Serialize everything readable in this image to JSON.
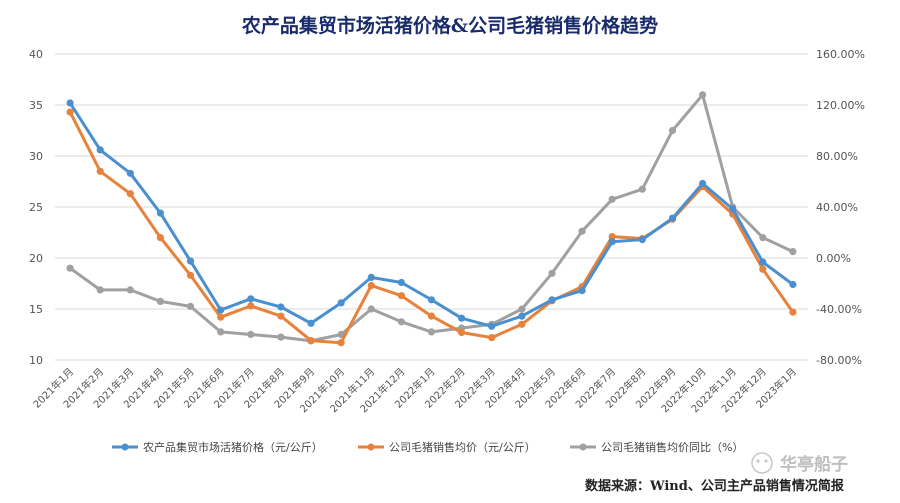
{
  "chart_data": {
    "type": "line",
    "title": "农产品集贸市场活猪价格&公司毛猪销售价格趋势",
    "categories": [
      "2021年1月",
      "2021年2月",
      "2021年3月",
      "2021年4月",
      "2021年5月",
      "2021年6月",
      "2021年7月",
      "2021年8月",
      "2021年9月",
      "2021年10月",
      "2021年11月",
      "2021年12月",
      "2022年1月",
      "2022年2月",
      "2022年3月",
      "2022年4月",
      "2022年5月",
      "2022年6月",
      "2022年7月",
      "2022年8月",
      "2022年9月",
      "2022年10月",
      "2022年11月",
      "2022年12月",
      "2023年1月"
    ],
    "y_left": {
      "min": 10,
      "max": 40,
      "ticks": [
        "10",
        "15",
        "20",
        "25",
        "30",
        "35",
        "40"
      ]
    },
    "y_right": {
      "min": -80,
      "max": 160,
      "ticks": [
        "-80.00%",
        "-40.00%",
        "0.00%",
        "40.00%",
        "80.00%",
        "120.00%",
        "160.00%"
      ]
    },
    "series": [
      {
        "name": "农产品集贸市场活猪价格（元/公斤）",
        "axis": "left",
        "color": "#4a8fd0",
        "values": [
          35.2,
          30.6,
          28.3,
          24.4,
          19.7,
          14.9,
          16.0,
          15.2,
          13.6,
          15.6,
          18.1,
          17.6,
          15.9,
          14.1,
          13.3,
          14.3,
          15.9,
          16.8,
          21.6,
          21.8,
          23.9,
          27.3,
          24.8,
          19.6,
          17.4
        ]
      },
      {
        "name": "公司毛猪销售均价（元/公斤）",
        "axis": "left",
        "color": "#e8813a",
        "values": [
          34.3,
          28.5,
          26.3,
          22.0,
          18.3,
          14.2,
          15.3,
          14.3,
          11.9,
          11.7,
          17.3,
          16.3,
          14.3,
          12.7,
          12.2,
          13.5,
          15.8,
          17.2,
          22.1,
          21.9,
          23.8,
          27.0,
          24.3,
          18.9,
          14.7
        ]
      },
      {
        "name": "公司毛猪销售均价同比（%）",
        "axis": "right",
        "color": "#a0a0a0",
        "values": [
          -8,
          -25,
          -25,
          -34,
          -38,
          -58,
          -60,
          -62,
          -65,
          -60,
          -40,
          -50,
          -58,
          -55,
          -52,
          -40,
          -12,
          21,
          46,
          54,
          100,
          128,
          40,
          16,
          5
        ]
      }
    ],
    "legend_position": "bottom"
  },
  "source_text": "数据来源：Wind、公司主产品销售情况简报",
  "watermark_text": "华亭船子"
}
